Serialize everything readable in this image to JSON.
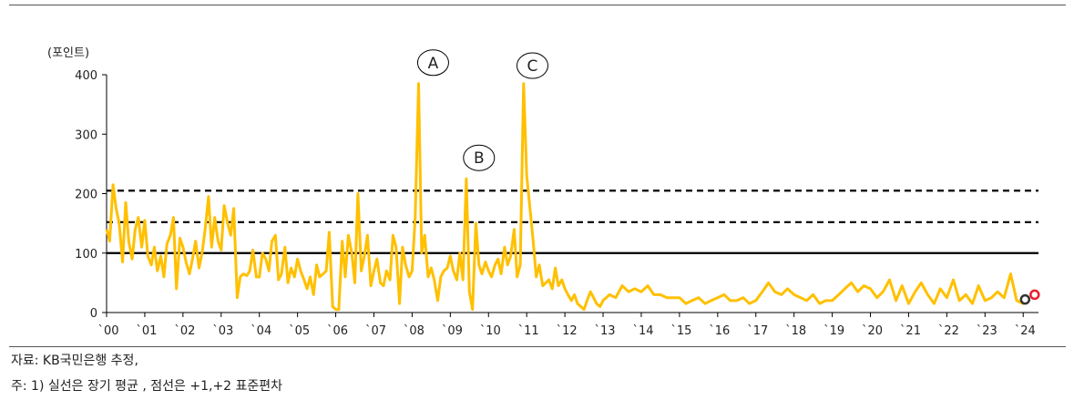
{
  "chart_data": {
    "type": "line",
    "ylabel": "(포인트)",
    "ylim": [
      0,
      400
    ],
    "yticks": [
      0,
      100,
      200,
      300,
      400
    ],
    "xticks": [
      "`00",
      "`01",
      "`02",
      "`03",
      "`04",
      "`05",
      "`06",
      "`07",
      "`08",
      "`09",
      "`10",
      "`11",
      "`12",
      "`13",
      "`14",
      "`15",
      "`16",
      "`17",
      "`18",
      "`19",
      "`20",
      "`21",
      "`22",
      "`23",
      "`24"
    ],
    "xlim": [
      2000,
      2024.4
    ],
    "line_color": "#FFC000",
    "reference_lines": [
      {
        "value": 100,
        "style": "solid"
      },
      {
        "value": 152,
        "style": "dashed"
      },
      {
        "value": 205,
        "style": "dashed"
      }
    ],
    "annotations": [
      {
        "label": "A",
        "x": 2008.55,
        "y": 385
      },
      {
        "label": "B",
        "x": 2009.75,
        "y": 225
      },
      {
        "label": "C",
        "x": 2011.15,
        "y": 380
      }
    ],
    "end_markers": [
      {
        "x": 2024.05,
        "y": 22,
        "color": "#333333"
      },
      {
        "x": 2024.3,
        "y": 30,
        "color": "#E8202A"
      }
    ],
    "series": [
      {
        "x": [
          2000.0,
          2000.08,
          2000.17,
          2000.25,
          2000.33,
          2000.42,
          2000.5,
          2000.58,
          2000.67,
          2000.75,
          2000.83,
          2000.92,
          2001.0,
          2001.08,
          2001.17,
          2001.25,
          2001.33,
          2001.42,
          2001.5,
          2001.58,
          2001.67,
          2001.75,
          2001.83,
          2001.92,
          2002.0,
          2002.08,
          2002.17,
          2002.25,
          2002.33,
          2002.42,
          2002.5,
          2002.58,
          2002.67,
          2002.75,
          2002.83,
          2002.92,
          2003.0,
          2003.08,
          2003.17,
          2003.25,
          2003.33,
          2003.42,
          2003.5,
          2003.58,
          2003.67,
          2003.75,
          2003.83,
          2003.92,
          2004.0,
          2004.08,
          2004.17,
          2004.25,
          2004.33,
          2004.42,
          2004.5,
          2004.58,
          2004.67,
          2004.75,
          2004.83,
          2004.92,
          2005.0,
          2005.08,
          2005.17,
          2005.25,
          2005.33,
          2005.42,
          2005.5,
          2005.58,
          2005.67,
          2005.75,
          2005.83,
          2005.92,
          2006.0,
          2006.08,
          2006.17,
          2006.25,
          2006.33,
          2006.42,
          2006.5,
          2006.58,
          2006.67,
          2006.75,
          2006.83,
          2006.92,
          2007.0,
          2007.08,
          2007.17,
          2007.25,
          2007.33,
          2007.42,
          2007.5,
          2007.58,
          2007.67,
          2007.75,
          2007.83,
          2007.92,
          2008.0,
          2008.08,
          2008.17,
          2008.25,
          2008.33,
          2008.42,
          2008.5,
          2008.58,
          2008.67,
          2008.75,
          2008.83,
          2008.92,
          2009.0,
          2009.08,
          2009.17,
          2009.25,
          2009.33,
          2009.42,
          2009.5,
          2009.58,
          2009.67,
          2009.75,
          2009.83,
          2009.92,
          2010.0,
          2010.08,
          2010.17,
          2010.25,
          2010.33,
          2010.42,
          2010.5,
          2010.58,
          2010.67,
          2010.75,
          2010.83,
          2010.92,
          2011.0,
          2011.08,
          2011.17,
          2011.25,
          2011.33,
          2011.42,
          2011.5,
          2011.58,
          2011.67,
          2011.75,
          2011.83,
          2011.92,
          2012.0,
          2012.08,
          2012.17,
          2012.25,
          2012.33,
          2012.42,
          2012.5,
          2012.58,
          2012.67,
          2012.75,
          2012.83,
          2012.92,
          2013.0,
          2013.17,
          2013.33,
          2013.5,
          2013.67,
          2013.83,
          2014.0,
          2014.17,
          2014.33,
          2014.5,
          2014.67,
          2014.83,
          2015.0,
          2015.17,
          2015.33,
          2015.5,
          2015.67,
          2015.83,
          2016.0,
          2016.17,
          2016.33,
          2016.5,
          2016.67,
          2016.83,
          2017.0,
          2017.17,
          2017.33,
          2017.5,
          2017.67,
          2017.83,
          2018.0,
          2018.17,
          2018.33,
          2018.5,
          2018.67,
          2018.83,
          2019.0,
          2019.17,
          2019.33,
          2019.5,
          2019.67,
          2019.83,
          2020.0,
          2020.17,
          2020.33,
          2020.5,
          2020.67,
          2020.83,
          2021.0,
          2021.17,
          2021.33,
          2021.5,
          2021.67,
          2021.83,
          2022.0,
          2022.17,
          2022.33,
          2022.5,
          2022.67,
          2022.83,
          2023.0,
          2023.17,
          2023.33,
          2023.5,
          2023.67,
          2023.83,
          2024.0,
          2024.1
        ],
        "y": [
          140,
          120,
          215,
          175,
          150,
          85,
          185,
          120,
          90,
          140,
          160,
          110,
          155,
          95,
          80,
          110,
          70,
          95,
          60,
          115,
          130,
          160,
          40,
          125,
          110,
          85,
          65,
          90,
          120,
          75,
          100,
          140,
          195,
          110,
          160,
          120,
          105,
          180,
          150,
          130,
          175,
          25,
          60,
          65,
          62,
          70,
          105,
          60,
          60,
          100,
          90,
          70,
          120,
          130,
          55,
          65,
          110,
          50,
          75,
          60,
          90,
          70,
          55,
          40,
          60,
          30,
          80,
          60,
          65,
          70,
          135,
          10,
          5,
          5,
          120,
          60,
          130,
          100,
          50,
          200,
          70,
          95,
          130,
          45,
          70,
          90,
          50,
          45,
          70,
          55,
          130,
          110,
          15,
          110,
          80,
          60,
          70,
          160,
          385,
          100,
          130,
          60,
          75,
          55,
          20,
          60,
          70,
          75,
          95,
          70,
          55,
          100,
          55,
          225,
          35,
          5,
          150,
          80,
          65,
          85,
          70,
          60,
          80,
          90,
          65,
          110,
          80,
          95,
          140,
          60,
          80,
          385,
          230,
          180,
          120,
          60,
          80,
          45,
          50,
          55,
          40,
          75,
          45,
          55,
          40,
          30,
          20,
          30,
          15,
          10,
          5,
          20,
          35,
          25,
          15,
          10,
          20,
          30,
          25,
          45,
          35,
          40,
          35,
          45,
          30,
          30,
          25,
          25,
          25,
          15,
          20,
          25,
          15,
          20,
          25,
          30,
          20,
          20,
          25,
          15,
          20,
          35,
          50,
          35,
          30,
          40,
          30,
          25,
          20,
          30,
          15,
          20,
          20,
          30,
          40,
          50,
          35,
          45,
          40,
          25,
          35,
          55,
          20,
          45,
          15,
          35,
          50,
          30,
          15,
          40,
          25,
          55,
          20,
          30,
          15,
          45,
          20,
          25,
          35,
          25,
          65,
          20,
          15,
          22
        ]
      }
    ]
  },
  "source_text": "자료: KB국민은행 추정,",
  "note_text": "주: 1) 실선은 장기 평균 , 점선은 +1,+2 표준편차"
}
